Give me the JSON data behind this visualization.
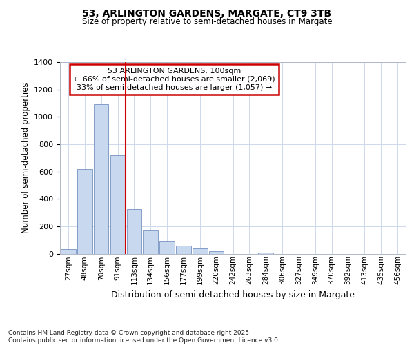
{
  "title1": "53, ARLINGTON GARDENS, MARGATE, CT9 3TB",
  "title2": "Size of property relative to semi-detached houses in Margate",
  "xlabel": "Distribution of semi-detached houses by size in Margate",
  "ylabel": "Number of semi-detached properties",
  "categories": [
    "27sqm",
    "48sqm",
    "70sqm",
    "91sqm",
    "113sqm",
    "134sqm",
    "156sqm",
    "177sqm",
    "199sqm",
    "220sqm",
    "242sqm",
    "263sqm",
    "284sqm",
    "306sqm",
    "327sqm",
    "349sqm",
    "370sqm",
    "392sqm",
    "413sqm",
    "435sqm",
    "456sqm"
  ],
  "values": [
    35,
    620,
    1090,
    720,
    325,
    170,
    95,
    60,
    40,
    20,
    0,
    0,
    10,
    0,
    0,
    0,
    0,
    0,
    0,
    0,
    0
  ],
  "bar_color": "#c8d8ee",
  "bar_edge_color": "#6080b8",
  "vline_color": "#cc0000",
  "annotation_line1": "53 ARLINGTON GARDENS: 100sqm",
  "annotation_line2": "← 66% of semi-detached houses are smaller (2,069)",
  "annotation_line3": "33% of semi-detached houses are larger (1,057) →",
  "annotation_box_color": "#ffffff",
  "annotation_box_edge": "#cc0000",
  "footer_text": "Contains HM Land Registry data © Crown copyright and database right 2025.\nContains public sector information licensed under the Open Government Licence v3.0.",
  "ylim": [
    0,
    1400
  ],
  "yticks": [
    0,
    200,
    400,
    600,
    800,
    1000,
    1200,
    1400
  ],
  "background_color": "#ffffff",
  "grid_color": "#cdd8ec"
}
